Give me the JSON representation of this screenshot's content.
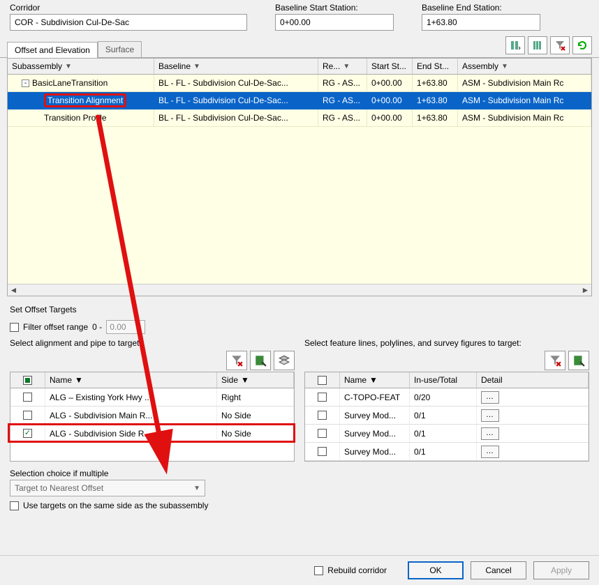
{
  "colors": {
    "accent": "#0a64c8",
    "highlight": "#e01010",
    "grid_bg": "#ffffe5"
  },
  "top": {
    "corridor_label": "Corridor",
    "corridor_value": "COR - Subdivision Cul-De-Sac",
    "start_label": "Baseline Start Station:",
    "start_value": "0+00.00",
    "end_label": "Baseline End Station:",
    "end_value": "1+63.80"
  },
  "tabs": {
    "offset": "Offset and Elevation",
    "surface": "Surface"
  },
  "grid": {
    "headers": {
      "sub": "Subassembly",
      "bl": "Baseline",
      "re": "Re...",
      "start": "Start St...",
      "end": "End St...",
      "asm": "Assembly"
    },
    "rows": [
      {
        "indent": 0,
        "expand": "-",
        "sub": "BasicLaneTransition",
        "bl": "BL - FL - Subdivision Cul-De-Sac...",
        "re": "RG - AS...",
        "start": "0+00.00",
        "end": "1+63.80",
        "asm": "ASM - Subdivision Main Rc",
        "sel": false
      },
      {
        "indent": 1,
        "sub": "Transition Alignment",
        "bl": "BL - FL - Subdivision Cul-De-Sac...",
        "re": "RG - AS...",
        "start": "0+00.00",
        "end": "1+63.80",
        "asm": "ASM - Subdivision Main Rc",
        "sel": true,
        "hl": true
      },
      {
        "indent": 1,
        "sub": "Transition Profile",
        "bl": "BL - FL - Subdivision Cul-De-Sac...",
        "re": "RG - AS...",
        "start": "0+00.00",
        "end": "1+63.80",
        "asm": "ASM - Subdivision Main Rc",
        "sel": false
      }
    ]
  },
  "offset": {
    "title": "Set Offset Targets",
    "filter_label": "Filter offset range",
    "filter_zero": "0 -",
    "filter_value": "0.00",
    "left_label": "Select alignment and pipe to target:",
    "right_label": "Select feature lines, polylines, and survey figures to target:",
    "a_headers": {
      "name": "Name",
      "side": "Side"
    },
    "a_rows": [
      {
        "chk": false,
        "name": "ALG – Existing York Hwy ...",
        "side": "Right"
      },
      {
        "chk": false,
        "name": "ALG - Subdivision Main R...",
        "side": "No Side"
      },
      {
        "chk": true,
        "name": "ALG - Subdivision Side R...",
        "side": "No Side",
        "hl": true
      }
    ],
    "b_headers": {
      "name": "Name",
      "inuse": "In-use/Total",
      "detail": "Detail"
    },
    "b_rows": [
      {
        "chk": false,
        "name": "C-TOPO-FEAT",
        "inuse": "0/20"
      },
      {
        "chk": false,
        "name": "Survey Mod...",
        "inuse": "0/1"
      },
      {
        "chk": false,
        "name": "Survey Mod...",
        "inuse": "0/1"
      },
      {
        "chk": false,
        "name": "Survey Mod...",
        "inuse": "0/1"
      }
    ],
    "multi_label": "Selection choice if multiple",
    "multi_value": "Target to Nearest Offset",
    "same_side": "Use targets on the same side as the subassembly"
  },
  "footer": {
    "rebuild": "Rebuild corridor",
    "ok": "OK",
    "cancel": "Cancel",
    "apply": "Apply"
  }
}
